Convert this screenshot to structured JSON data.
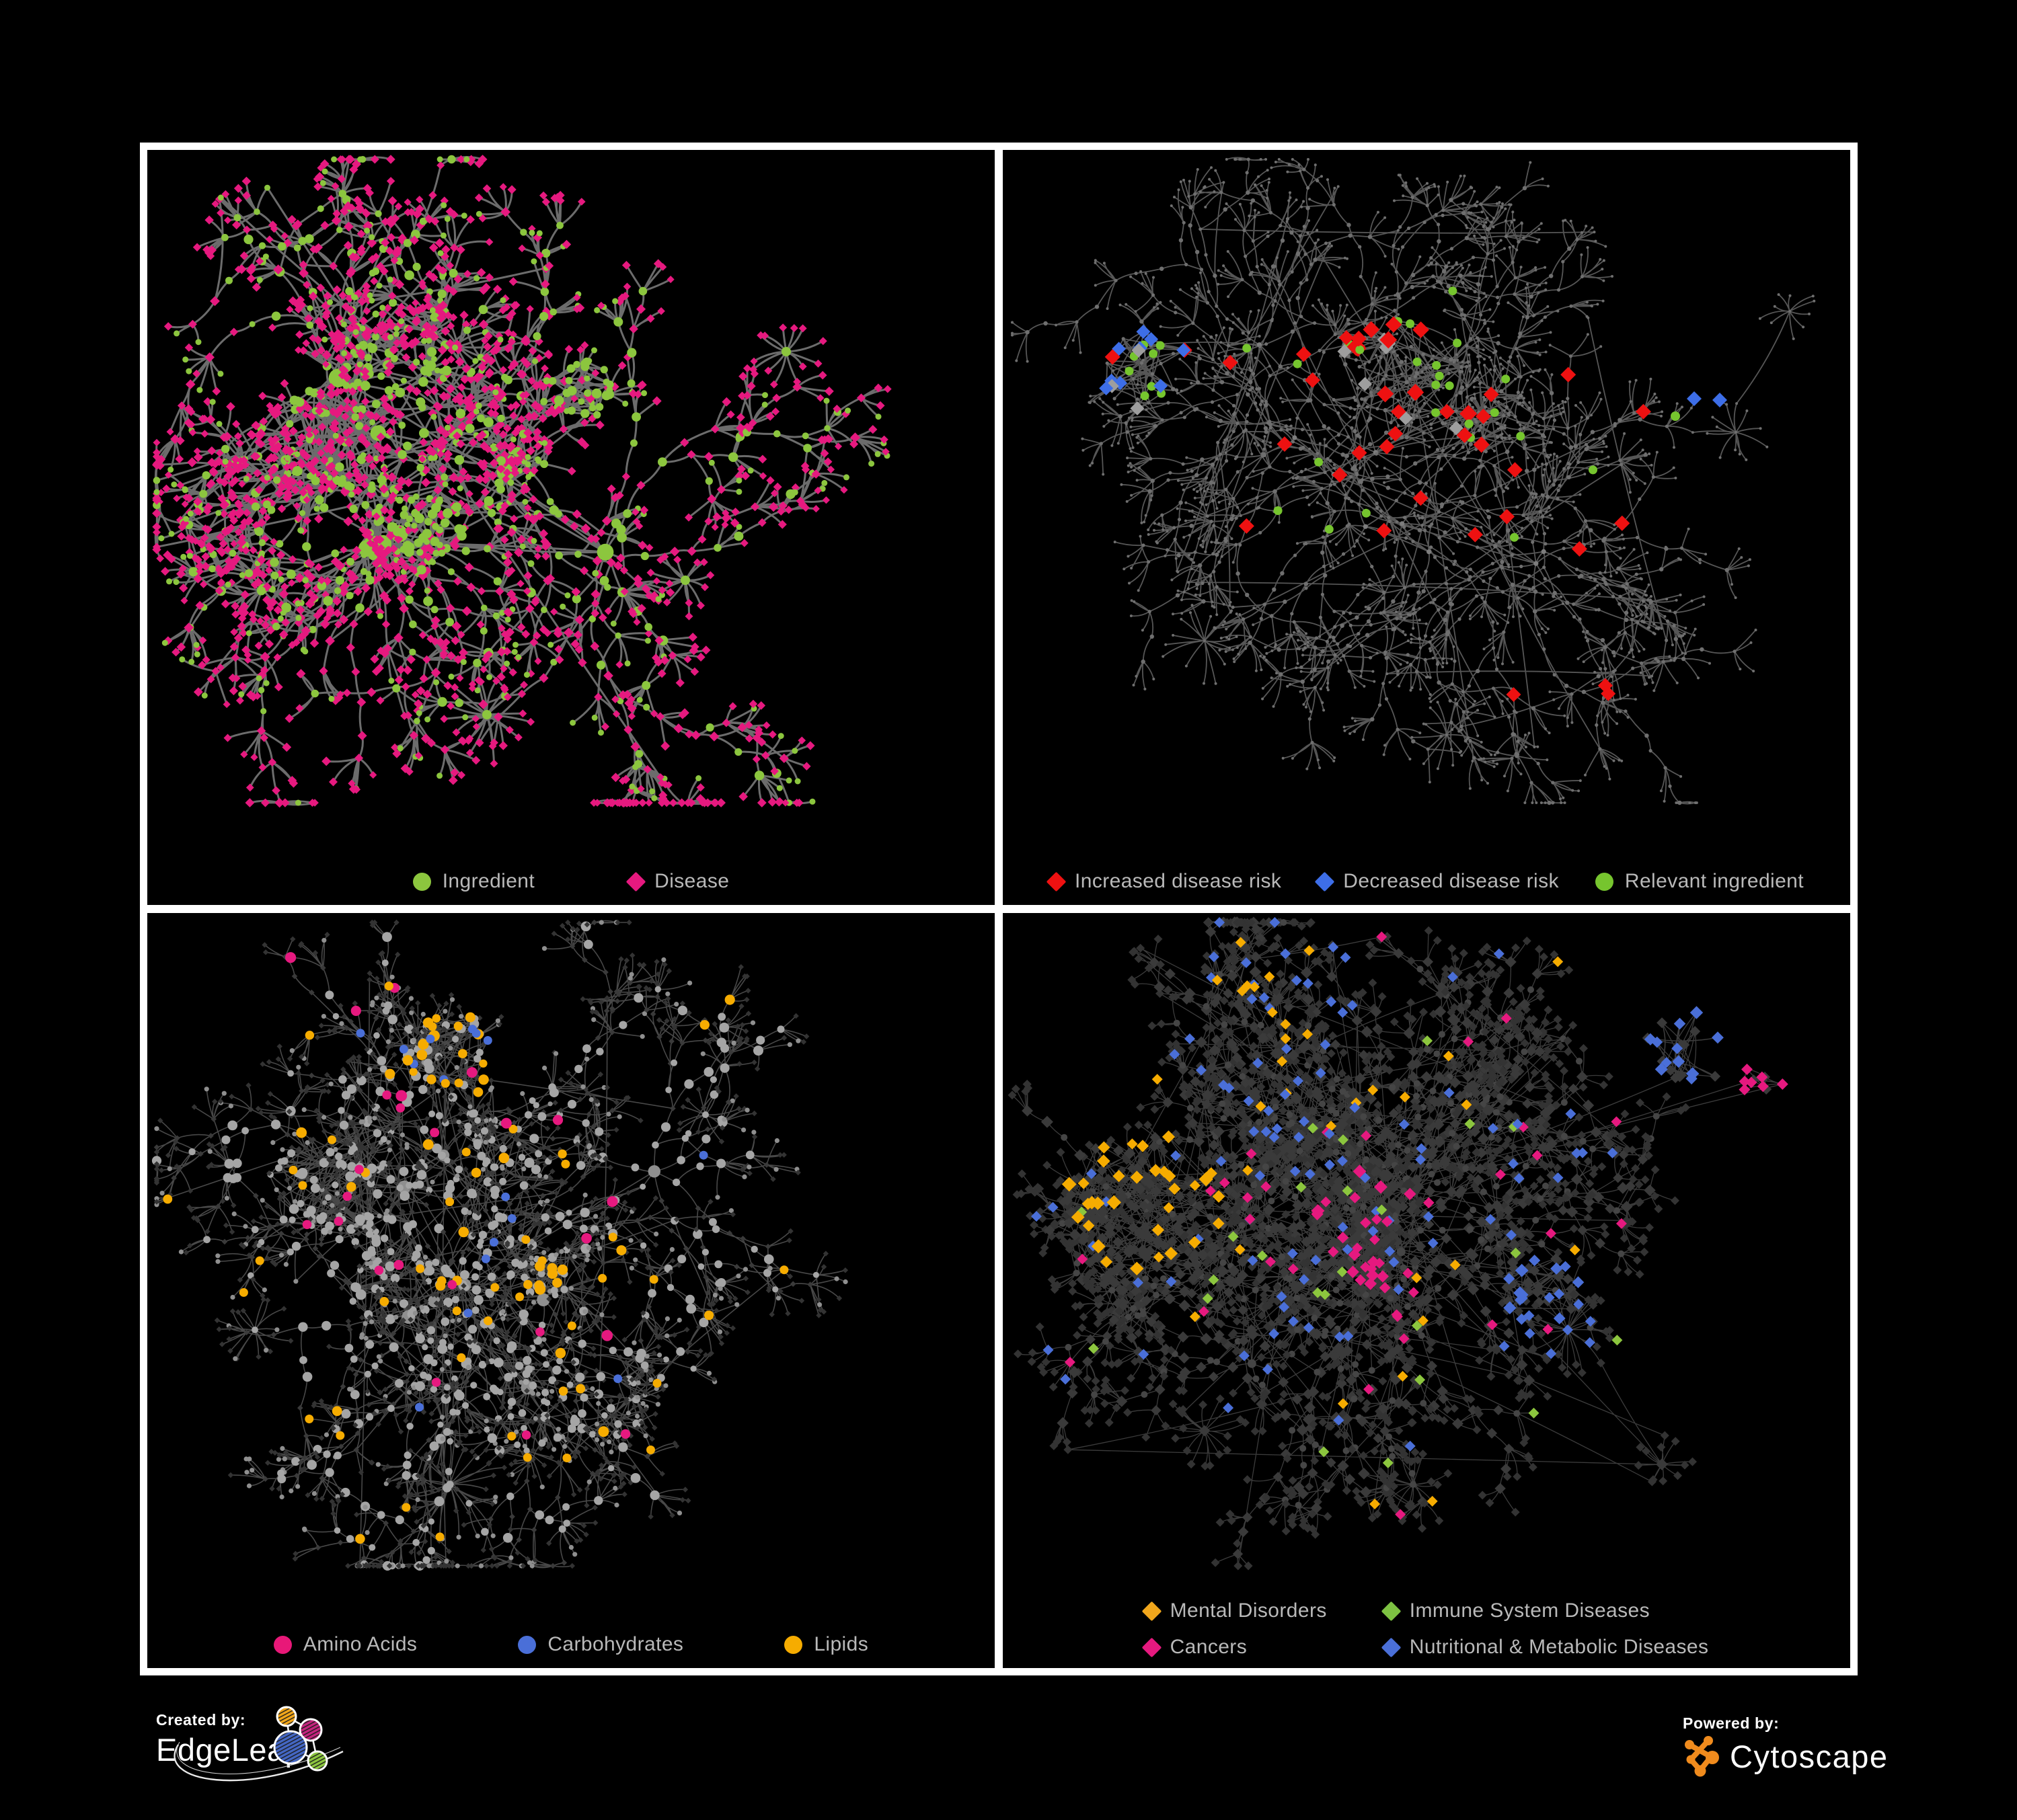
{
  "panels": [
    {
      "id": "ingredient-disease",
      "legend": [
        {
          "label": "Ingredient",
          "marker": "circle",
          "color": "#8cc63e"
        },
        {
          "label": "Disease",
          "marker": "diamond",
          "color": "#e6197f"
        }
      ]
    },
    {
      "id": "disease-risk",
      "legend": [
        {
          "label": "Increased disease risk",
          "marker": "diamond",
          "color": "#ee1111"
        },
        {
          "label": "Decreased disease risk",
          "marker": "diamond",
          "color": "#3d6ee8"
        },
        {
          "label": "Relevant ingredient",
          "marker": "circle",
          "color": "#76c52e"
        }
      ]
    },
    {
      "id": "nutrient-classes",
      "legend": [
        {
          "label": "Amino Acids",
          "marker": "circle",
          "color": "#e81878"
        },
        {
          "label": "Carbohydrates",
          "marker": "circle",
          "color": "#4a6fd8"
        },
        {
          "label": "Lipids",
          "marker": "circle",
          "color": "#f6ac00"
        }
      ]
    },
    {
      "id": "disease-classes",
      "legend": [
        {
          "label": "Mental Disorders",
          "marker": "diamond",
          "color": "#f0a61c"
        },
        {
          "label": "Immune System Diseases",
          "marker": "diamond",
          "color": "#7dc242"
        },
        {
          "label": "Cancers",
          "marker": "diamond",
          "color": "#e6197f"
        },
        {
          "label": "Nutritional & Metabolic Diseases",
          "marker": "diamond",
          "color": "#4a6fd8"
        }
      ]
    }
  ],
  "footer": {
    "created_by": "Created by:",
    "edgeleap": "EdgeLeap",
    "powered_by": "Powered by:",
    "cytoscape": "Cytoscape"
  },
  "network_styles": {
    "edge_bold": "#757575",
    "edge_mid": "#5f5f5f",
    "edge_thin": "#5a5a5a",
    "edge_dim": "#6e6e6e",
    "base_dot": "#6f6f6f",
    "base_dot_bright": "#7d7d7d",
    "gray_circle": "#a5a5a5",
    "gray_circle_dim": "#8f8f8f",
    "dark_diamond": "#3a3a3a",
    "darker_diamond": "#333333",
    "dark_circle": "#454545",
    "gray_diamond": "#9e9e9e",
    "green": "#8cc63e",
    "bright_green": "#76c52e",
    "pink": "#e6197f",
    "red": "#ee1111",
    "blue": "#3d6ee8",
    "gold": "#f6ac00",
    "periwinkle": "#4a6fd8",
    "edgeleap_orange": "#f2a71b",
    "edgeleap_magenta": "#c4247e",
    "edgeleap_blue": "#4467c4",
    "edgeleap_green": "#8cc63f",
    "cytoscape_orange": "#f08b1d"
  }
}
